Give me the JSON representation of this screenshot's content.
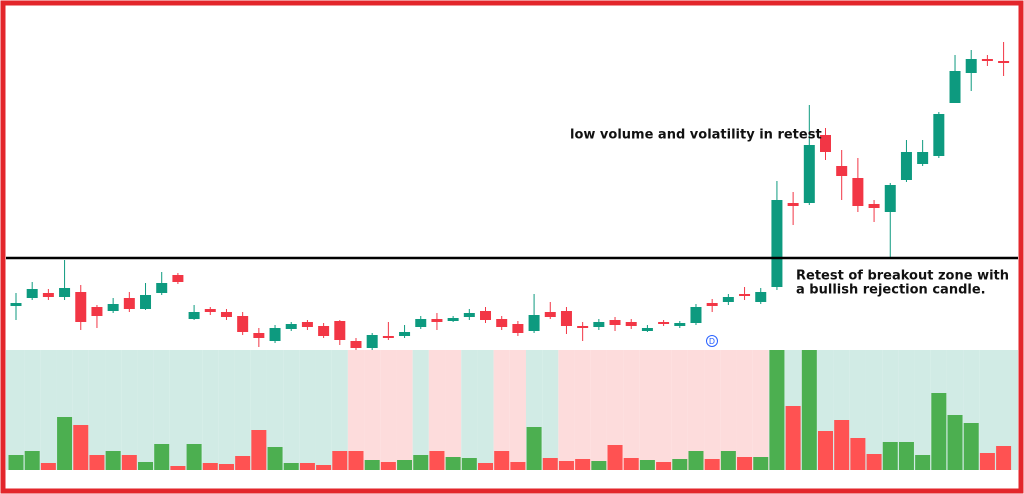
{
  "chart_data": {
    "type": "candlestick",
    "open": [
      188,
      196,
      201,
      197,
      202,
      187,
      183,
      196,
      185,
      201,
      219,
      175,
      185,
      182,
      178,
      161,
      153,
      165,
      172,
      168,
      173,
      153,
      146,
      158,
      158,
      167,
      175,
      173,
      177,
      183,
      175,
      170,
      163,
      182,
      183,
      168,
      167,
      174,
      172,
      163,
      172,
      168,
      171,
      191,
      192,
      200,
      192,
      207,
      291,
      291,
      359,
      328,
      316,
      290,
      282,
      314,
      330,
      338,
      391,
      421,
      435,
      433
    ],
    "high": [
      201,
      212,
      205,
      234,
      209,
      189,
      196,
      202,
      211,
      222,
      221,
      189,
      187,
      185,
      182,
      166,
      169,
      172,
      174,
      171,
      174,
      156,
      161,
      172,
      169,
      178,
      181,
      178,
      185,
      187,
      178,
      173,
      200,
      192,
      187,
      172,
      175,
      177,
      175,
      169,
      174,
      173,
      190,
      195,
      200,
      207,
      206,
      313,
      302,
      389,
      366,
      344,
      336,
      294,
      311,
      354,
      354,
      382,
      439,
      444,
      439,
      452
    ],
    "low": [
      174,
      194,
      194,
      194,
      164,
      166,
      181,
      182,
      184,
      199,
      210,
      174,
      179,
      174,
      159,
      147,
      151,
      163,
      164,
      156,
      149,
      144,
      144,
      154,
      156,
      165,
      164,
      172,
      174,
      171,
      164,
      158,
      161,
      175,
      160,
      153,
      164,
      163,
      165,
      162,
      168,
      166,
      169,
      182,
      189,
      194,
      190,
      204,
      269,
      289,
      334,
      294,
      282,
      272,
      236,
      312,
      328,
      336,
      391,
      403,
      428,
      418
    ],
    "close": [
      191,
      205,
      197,
      206,
      172,
      178,
      190,
      185,
      199,
      211,
      212,
      182,
      182,
      177,
      162,
      156,
      166,
      170,
      167,
      158,
      154,
      146,
      159,
      156,
      162,
      175,
      172,
      176,
      181,
      174,
      167,
      161,
      179,
      177,
      168,
      166,
      172,
      169,
      168,
      166,
      170,
      171,
      187,
      188,
      197,
      198,
      202,
      294,
      288,
      349,
      342,
      318,
      288,
      286,
      309,
      342,
      342,
      380,
      423,
      435,
      433,
      431
    ],
    "volume": [
      15,
      19,
      7,
      53,
      45,
      15,
      19,
      15,
      8,
      26,
      4,
      26,
      7,
      6,
      14,
      40,
      23,
      7,
      7,
      5,
      19,
      19,
      10,
      8,
      10,
      15,
      19,
      13,
      12,
      7,
      19,
      8,
      43,
      12,
      9,
      11,
      9,
      25,
      12,
      10,
      8,
      11,
      19,
      11,
      19,
      13,
      13,
      120,
      64,
      120,
      39,
      50,
      32,
      16,
      28,
      28,
      15,
      77,
      55,
      47,
      17,
      24
    ],
    "ylim": [
      144,
      482
    ],
    "vlim": [
      0,
      120
    ],
    "level": 236,
    "up_color": "#0d9a7f",
    "down_color": "#f23645",
    "volume_up_color": "#4caf50",
    "volume_down_color": "#ff5252",
    "background_colors": [
      "#d1ebe5",
      "#d1ebe5",
      "#d1ebe5",
      "#d1ebe5",
      "#d1ebe5",
      "#d1ebe5",
      "#d1ebe5",
      "#d1ebe5",
      "#d1ebe5",
      "#d1ebe5",
      "#d1ebe5",
      "#d1ebe5",
      "#d1ebe5",
      "#d1ebe5",
      "#d1ebe5",
      "#d1ebe5",
      "#d1ebe5",
      "#d1ebe5",
      "#d1ebe5",
      "#d1ebe5",
      "#d1ebe5",
      "#fddcdc",
      "#fddcdc",
      "#fddcdc",
      "#fddcdc",
      "#d1ebe5",
      "#fddcdc",
      "#fddcdc",
      "#d1ebe5",
      "#d1ebe5",
      "#fddcdc",
      "#fddcdc",
      "#d1ebe5",
      "#d1ebe5",
      "#fddcdc",
      "#fddcdc",
      "#fddcdc",
      "#fddcdc",
      "#fddcdc",
      "#fddcdc",
      "#fddcdc",
      "#fddcdc",
      "#fddcdc",
      "#fddcdc",
      "#fddcdc",
      "#fddcdc",
      "#fddcdc",
      "#d1ebe5",
      "#d1ebe5",
      "#d1ebe5",
      "#d1ebe5",
      "#d1ebe5",
      "#d1ebe5",
      "#d1ebe5",
      "#d1ebe5",
      "#d1ebe5",
      "#d1ebe5",
      "#d1ebe5",
      "#d1ebe5",
      "#d1ebe5",
      "#d1ebe5",
      "#d1ebe5"
    ],
    "annotations": [
      {
        "lines": [
          "low volume and volatility in retest"
        ]
      },
      {
        "lines": [
          "Retest of breakout zone with",
          "a bullish rejection candle."
        ]
      }
    ],
    "marker_label": "D"
  }
}
